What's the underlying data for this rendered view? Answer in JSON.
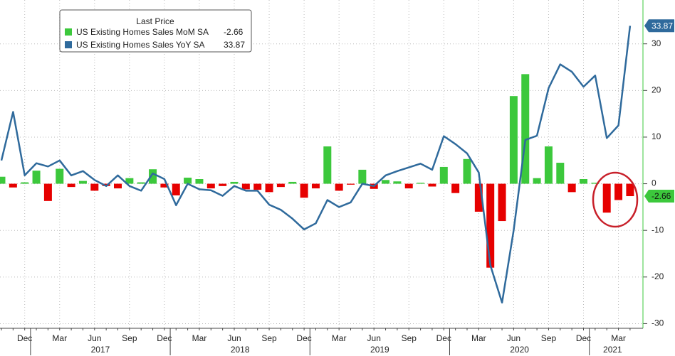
{
  "chart_data": {
    "type": "bar_line",
    "legend_title": "Last Price",
    "categories": [
      null,
      null,
      "Dec",
      null,
      null,
      "Mar",
      null,
      null,
      "Jun",
      null,
      null,
      "Sep",
      null,
      null,
      "Dec",
      null,
      null,
      "Mar",
      null,
      null,
      "Jun",
      null,
      null,
      "Sep",
      null,
      null,
      "Dec",
      null,
      null,
      "Mar",
      null,
      null,
      "Jun",
      null,
      null,
      "Sep",
      null,
      null,
      "Dec",
      null,
      null,
      "Mar",
      null,
      null,
      "Jun",
      null,
      null,
      "Sep",
      null,
      null,
      "Dec",
      null,
      null,
      "Mar",
      null
    ],
    "year_labels": [
      "2017",
      "2018",
      "2019",
      "2020",
      "2021"
    ],
    "series": [
      {
        "name": "US Existing Homes Sales MoM SA",
        "kind": "bar",
        "color": "#3cc83c",
        "negative_color": "#e60000",
        "values": [
          1.5,
          -0.8,
          0.3,
          2.8,
          -3.7,
          3.2,
          -0.7,
          0.6,
          -1.5,
          -0.5,
          -1.0,
          1.2,
          0.3,
          3.1,
          -0.8,
          -2.5,
          1.3,
          1.0,
          -1.0,
          -0.5,
          0.4,
          -1.2,
          -1.3,
          -1.8,
          -0.7,
          0.4,
          -3.0,
          -1.0,
          8.0,
          -1.5,
          -0.2,
          3.0,
          -1.1,
          0.8,
          0.5,
          -1.0,
          0.2,
          -0.6,
          3.6,
          -2.0,
          5.3,
          -6.0,
          -18.0,
          -8.0,
          18.8,
          23.5,
          1.2,
          8.0,
          4.5,
          -1.8,
          1.0,
          0.2,
          -6.2,
          -3.5,
          -2.66
        ]
      },
      {
        "name": "US Existing Homes Sales YoY SA",
        "kind": "line",
        "color": "#2f6a9c",
        "values": [
          5.0,
          15.4,
          1.8,
          4.4,
          3.7,
          5.0,
          1.8,
          2.7,
          0.8,
          -0.5,
          1.8,
          -0.5,
          -1.5,
          2.2,
          1.0,
          -4.6,
          0.0,
          -1.2,
          -1.4,
          -2.6,
          -0.5,
          -1.5,
          -1.5,
          -4.5,
          -5.6,
          -7.5,
          -9.8,
          -8.5,
          -3.5,
          -5.0,
          -4.0,
          0.0,
          -0.5,
          1.8,
          2.7,
          3.5,
          4.3,
          3.0,
          10.2,
          8.5,
          6.5,
          2.4,
          -17.5,
          -25.5,
          -10.0,
          9.4,
          10.3,
          20.5,
          25.6,
          24.0,
          20.8,
          23.2,
          9.8,
          12.5,
          33.87
        ]
      }
    ],
    "ylim": [
      -31,
      39.4
    ],
    "yticks": [
      30,
      20,
      10,
      0,
      -10,
      -20,
      -30
    ],
    "grid": true
  }
}
